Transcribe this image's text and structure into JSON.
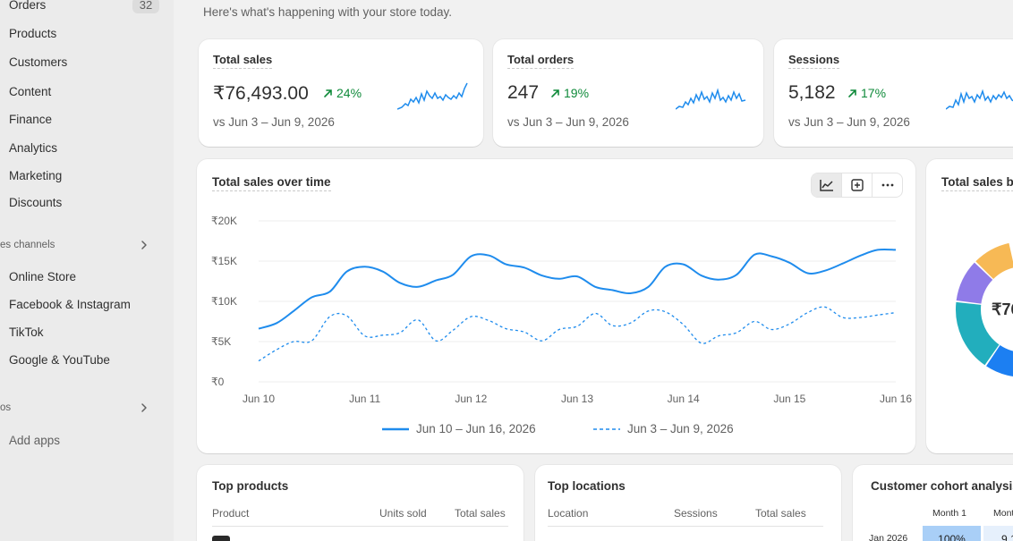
{
  "sidebar": {
    "orders_label": "Orders",
    "orders_count": "32",
    "items": [
      "Products",
      "Customers",
      "Content",
      "Finance",
      "Analytics",
      "Marketing",
      "Discounts"
    ],
    "sales_channels_label": "es channels",
    "channels": [
      "Online Store",
      "Facebook & Instagram",
      "TikTok",
      "Google & YouTube"
    ],
    "apps_label": "os",
    "add_apps_label": "Add apps"
  },
  "header": {
    "subtitle": "Here's what's happening with your store today."
  },
  "kpis": [
    {
      "title": "Total sales",
      "value": "₹76,493.00",
      "delta": "24%",
      "compare": "vs Jun 3 – Jun 9, 2026"
    },
    {
      "title": "Total orders",
      "value": "247",
      "delta": "19%",
      "compare": "vs Jun 3 – Jun 9, 2026"
    },
    {
      "title": "Sessions",
      "value": "5,182",
      "delta": "17%",
      "compare": "vs Jun 3 – Jun 9, 2026"
    }
  ],
  "chart_data": {
    "type": "line",
    "title": "Total sales over time",
    "x": [
      "Jun 10",
      "Jun 11",
      "Jun 12",
      "Jun 13",
      "Jun 14",
      "Jun 15",
      "Jun 16"
    ],
    "y_ticks": [
      "₹0",
      "₹5K",
      "₹10K",
      "₹15K",
      "₹20K"
    ],
    "ylim": [
      0,
      20000
    ],
    "grid": true,
    "legend_position": "bottom",
    "series": [
      {
        "name": "Jun 10 – Jun 16, 2026",
        "style": "solid",
        "color": "#1f8ced",
        "x": [
          0,
          0.17,
          0.33,
          0.5,
          0.67,
          0.83,
          1,
          1.17,
          1.33,
          1.5,
          1.67,
          1.83,
          2,
          2.17,
          2.33,
          2.5,
          2.67,
          2.83,
          3,
          3.17,
          3.33,
          3.5,
          3.67,
          3.83,
          4,
          4.17,
          4.33,
          4.5,
          4.67,
          4.83,
          5,
          5.17,
          5.33,
          5.5,
          5.67,
          5.83,
          6
        ],
        "values": [
          6600,
          7300,
          8800,
          10500,
          11200,
          13700,
          14300,
          13700,
          12300,
          11800,
          12600,
          13300,
          15600,
          15700,
          14600,
          14200,
          13200,
          12800,
          13100,
          11800,
          11400,
          11000,
          11800,
          14300,
          14600,
          13200,
          12700,
          13300,
          15800,
          15600,
          14800,
          13500,
          13800,
          14700,
          15700,
          16400,
          16400
        ]
      },
      {
        "name": "Jun 3 – Jun 9, 2026",
        "style": "dashed",
        "color": "#1f8ced",
        "x": [
          0,
          0.17,
          0.33,
          0.5,
          0.67,
          0.83,
          1,
          1.17,
          1.33,
          1.5,
          1.67,
          1.83,
          2,
          2.17,
          2.33,
          2.5,
          2.67,
          2.83,
          3,
          3.17,
          3.33,
          3.5,
          3.67,
          3.83,
          4,
          4.17,
          4.33,
          4.5,
          4.67,
          4.83,
          5,
          5.17,
          5.33,
          5.5,
          5.67,
          5.83,
          6
        ],
        "values": [
          2600,
          4000,
          5000,
          5100,
          8100,
          8200,
          5700,
          5800,
          6100,
          7700,
          5100,
          6400,
          8100,
          7600,
          6600,
          6200,
          5100,
          6500,
          6900,
          8500,
          7000,
          7300,
          8800,
          8700,
          7100,
          4800,
          5700,
          6100,
          7500,
          6500,
          7200,
          8600,
          9300,
          8000,
          8000,
          8300,
          8600
        ]
      }
    ]
  },
  "donut": {
    "title": "Total sales b",
    "center_value": "₹76",
    "segments": [
      {
        "color": "#f7b955",
        "fraction": 0.09
      },
      {
        "color": "#8f7be8",
        "fraction": 0.1
      },
      {
        "color": "#22aebd",
        "fraction": 0.17
      },
      {
        "color": "#1c7ff2",
        "fraction": 0.22
      }
    ]
  },
  "chart_toolbar": {
    "active": "line-chart-icon"
  },
  "top_products": {
    "title": "Top products",
    "columns": [
      "Product",
      "Units sold",
      "Total sales"
    ]
  },
  "top_locations": {
    "title": "Top locations",
    "columns": [
      "Location",
      "Sessions",
      "Total sales"
    ]
  },
  "cohort": {
    "title": "Customer cohort analysis",
    "columns": [
      "Month 1",
      "Mont"
    ],
    "row_label": "Jan 2026",
    "cells": [
      "100%",
      "9.1"
    ]
  }
}
